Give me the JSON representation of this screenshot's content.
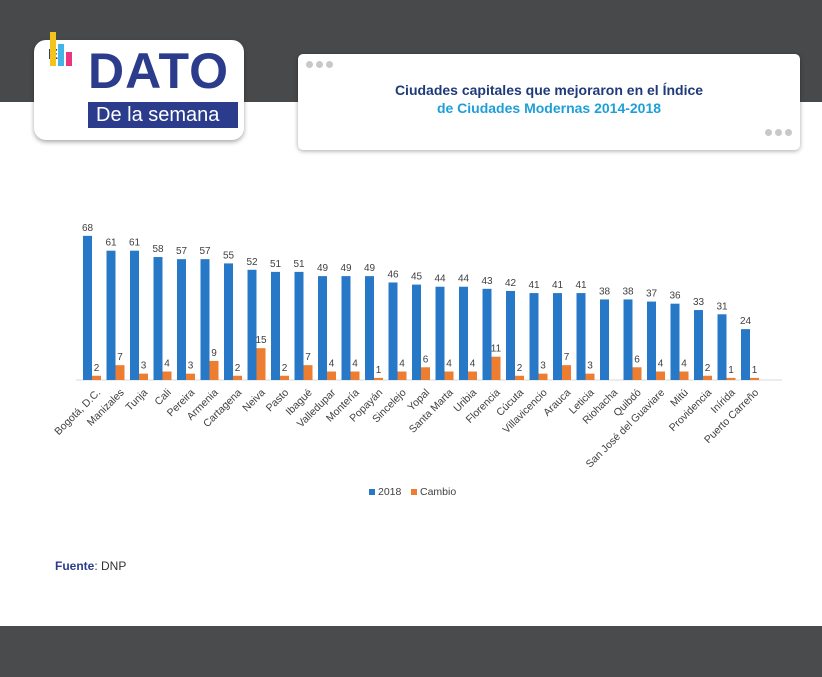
{
  "logo": {
    "prefix": "El",
    "word": "DATO",
    "sub": "De la semana"
  },
  "title": {
    "line1": "Ciudades capitales que mejoraron en el Índice",
    "line2": "de Ciudades Modernas 2014-2018"
  },
  "source": {
    "label": "Fuente",
    "sep": ": ",
    "value": "DNP"
  },
  "colors": {
    "series_2018": "#2878c8",
    "series_cambio": "#ed7d31",
    "title_dark": "#1f3a7a",
    "title_light": "#1f9fd8",
    "logo_blue": "#2c3c8c"
  },
  "chart_data": {
    "type": "bar",
    "categories": [
      "Bogotá, D.C.",
      "Manizales",
      "Tunja",
      "Cali",
      "Pereira",
      "Armenia",
      "Cartagena",
      "Neiva",
      "Pasto",
      "Ibagué",
      "Valledupar",
      "Montería",
      "Popayán",
      "Sincelejo",
      "Yopal",
      "Santa Marta",
      "Uribia",
      "Florencia",
      "Cúcuta",
      "Villavicencio",
      "Arauca",
      "Leticia",
      "Riohacha",
      "Quibdó",
      "San José del Guaviare",
      "Mitú",
      "Providencia",
      "Inírida",
      "Puerto Carreño"
    ],
    "series": [
      {
        "name": "2018",
        "values": [
          68,
          61,
          61,
          58,
          57,
          57,
          55,
          52,
          51,
          51,
          49,
          49,
          49,
          46,
          45,
          44,
          44,
          43,
          42,
          41,
          41,
          41,
          38,
          38,
          37,
          36,
          33,
          31,
          24
        ]
      },
      {
        "name": "Cambio",
        "values": [
          2,
          7,
          3,
          4,
          3,
          9,
          2,
          15,
          2,
          7,
          4,
          4,
          1,
          4,
          6,
          4,
          4,
          11,
          2,
          3,
          7,
          3,
          0,
          6,
          4,
          4,
          2,
          1,
          1
        ]
      }
    ],
    "ylim": [
      0,
      70
    ],
    "legend": "bottom-center",
    "grid": false
  }
}
